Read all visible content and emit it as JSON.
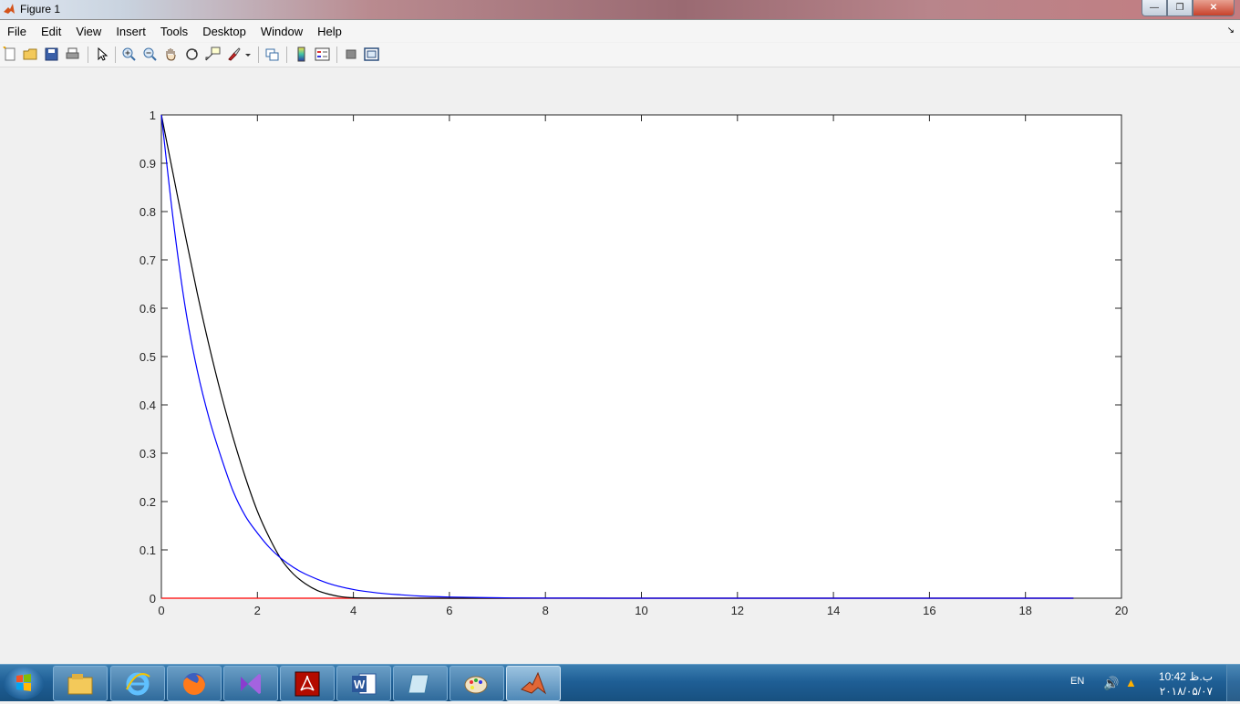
{
  "window": {
    "title": "Figure 1",
    "minimize_label": "—",
    "restore_label": "❐",
    "close_label": "✕"
  },
  "menu": {
    "items": [
      "File",
      "Edit",
      "View",
      "Insert",
      "Tools",
      "Desktop",
      "Window",
      "Help"
    ]
  },
  "toolbar": {
    "buttons": [
      {
        "icon": "new-figure-icon"
      },
      {
        "icon": "open-file-icon"
      },
      {
        "icon": "save-icon"
      },
      {
        "icon": "print-icon"
      },
      {
        "icon": "edit-plot-arrow-icon"
      },
      {
        "icon": "zoom-in-icon"
      },
      {
        "icon": "zoom-out-icon"
      },
      {
        "icon": "pan-hand-icon"
      },
      {
        "icon": "rotate-3d-icon"
      },
      {
        "icon": "data-cursor-icon"
      },
      {
        "icon": "brush-icon"
      },
      {
        "icon": "link-plot-icon"
      },
      {
        "icon": "colorbar-icon"
      },
      {
        "icon": "legend-icon"
      },
      {
        "icon": "hide-plot-tools-icon"
      },
      {
        "icon": "show-plot-tools-icon"
      }
    ]
  },
  "chart_data": {
    "type": "line",
    "xlim": [
      0,
      20
    ],
    "ylim": [
      0,
      1
    ],
    "xticks": [
      "0",
      "2",
      "4",
      "6",
      "8",
      "10",
      "12",
      "14",
      "16",
      "18",
      "20"
    ],
    "yticks": [
      "0",
      "0.1",
      "0.2",
      "0.3",
      "0.4",
      "0.5",
      "0.6",
      "0.7",
      "0.8",
      "0.9",
      "1"
    ],
    "series": [
      {
        "color": "#000000",
        "x": [
          0,
          0.25,
          0.5,
          0.75,
          1.0,
          1.25,
          1.5,
          1.75,
          2.0,
          2.25,
          2.5,
          2.75,
          3.0,
          3.25,
          3.5,
          3.75,
          4.0,
          4.5,
          5,
          6,
          8,
          10,
          12,
          14,
          16,
          18,
          19
        ],
        "y": [
          1.0,
          0.875,
          0.75,
          0.63,
          0.52,
          0.42,
          0.33,
          0.25,
          0.18,
          0.125,
          0.08,
          0.05,
          0.03,
          0.016,
          0.008,
          0.003,
          0.001,
          0,
          0,
          0,
          0,
          0,
          0,
          0,
          0,
          0,
          0
        ]
      },
      {
        "color": "#0000ff",
        "x": [
          0,
          0.25,
          0.5,
          0.75,
          1.0,
          1.25,
          1.5,
          1.75,
          2.0,
          2.25,
          2.5,
          2.75,
          3.0,
          3.5,
          4.0,
          4.5,
          5.0,
          5.5,
          6.0,
          7.0,
          8,
          10,
          12,
          14,
          16,
          18,
          19
        ],
        "y": [
          1.0,
          0.78,
          0.6,
          0.47,
          0.37,
          0.29,
          0.22,
          0.17,
          0.135,
          0.105,
          0.082,
          0.064,
          0.05,
          0.03,
          0.018,
          0.011,
          0.007,
          0.004,
          0.0025,
          0.0009,
          0.0003,
          0,
          0,
          0,
          0,
          0,
          0
        ]
      },
      {
        "color": "#ff0000",
        "x": [
          0,
          2,
          4,
          6,
          8,
          10,
          12,
          14,
          16,
          18,
          19
        ],
        "y": [
          0,
          0,
          0,
          0,
          0,
          0,
          0,
          0,
          0,
          0,
          0
        ]
      }
    ]
  },
  "taskbar": {
    "apps": [
      {
        "icon": "file-explorer-icon"
      },
      {
        "icon": "internet-explorer-icon"
      },
      {
        "icon": "firefox-icon"
      },
      {
        "icon": "visual-studio-icon"
      },
      {
        "icon": "acrobat-reader-icon"
      },
      {
        "icon": "word-icon"
      },
      {
        "icon": "notepad-icon"
      },
      {
        "icon": "paint-icon"
      },
      {
        "icon": "matlab-icon"
      }
    ],
    "language": "EN",
    "time": "10:42 ب.ظ",
    "date": "۲۰۱۸/۰۵/۰۷"
  }
}
